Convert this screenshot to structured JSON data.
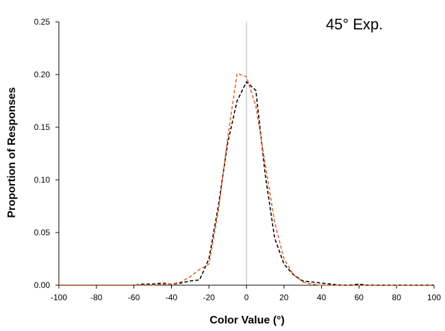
{
  "chart_data": {
    "type": "line",
    "title": "",
    "annotation": "45° Exp.",
    "xlabel": "Color Value (°)",
    "ylabel": "Proportion of Responses",
    "xlim": [
      -100,
      100
    ],
    "ylim": [
      0,
      0.25
    ],
    "x_ticks": [
      "-100",
      "-80",
      "-60",
      "-40",
      "-20",
      "0",
      "20",
      "40",
      "60",
      "80",
      "100"
    ],
    "y_ticks": [
      "0.00",
      "0.05",
      "0.10",
      "0.15",
      "0.20",
      "0.25"
    ],
    "reference_line_x": 0,
    "reference_line_color": "#b0b0b0",
    "grid": false,
    "x": [
      -100,
      -95,
      -90,
      -85,
      -80,
      -75,
      -70,
      -65,
      -60,
      -55,
      -50,
      -45,
      -40,
      -35,
      -30,
      -25,
      -20,
      -15,
      -10,
      -5,
      0,
      5,
      10,
      15,
      20,
      25,
      30,
      35,
      40,
      45,
      50,
      55,
      60,
      65,
      70,
      75,
      80,
      85,
      90,
      95,
      100
    ],
    "series": [
      {
        "color": "#000000",
        "dash": "dashed",
        "values": [
          0,
          0,
          0,
          0,
          0,
          0,
          0,
          0,
          0,
          0.001,
          0.001,
          0.002,
          0.001,
          0.002,
          0.004,
          0.005,
          0.025,
          0.075,
          0.135,
          0.175,
          0.193,
          0.185,
          0.105,
          0.045,
          0.02,
          0.01,
          0.004,
          0.003,
          0.002,
          0.001,
          0,
          0,
          0.001,
          0,
          0,
          0,
          0,
          0,
          0,
          0,
          0
        ]
      },
      {
        "color": "#e8622a",
        "dash": "dashed",
        "values": [
          0,
          0,
          0,
          0,
          0,
          0,
          0,
          0,
          0,
          0,
          0,
          0.001,
          0.001,
          0.003,
          0.008,
          0.015,
          0.02,
          0.07,
          0.14,
          0.201,
          0.198,
          0.17,
          0.115,
          0.06,
          0.025,
          0.01,
          0.003,
          0.001,
          0,
          0,
          0,
          0,
          0,
          0,
          0,
          0,
          0,
          0,
          0,
          0,
          0
        ]
      }
    ]
  }
}
